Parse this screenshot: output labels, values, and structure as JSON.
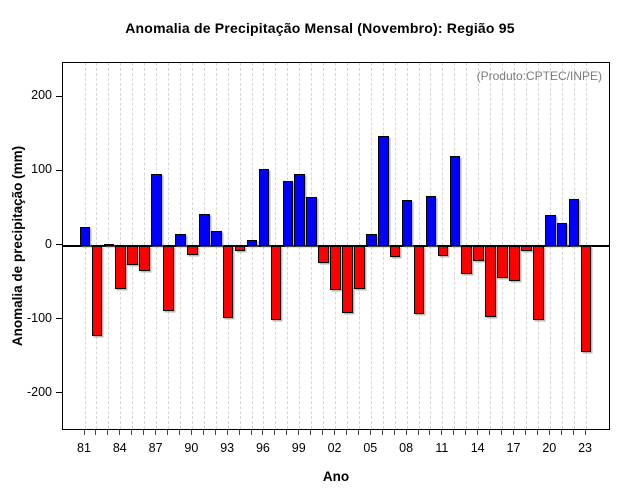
{
  "title": "Anomalia de Precipitação Mensal (Novembro): Região 95",
  "annotation": "(Produto:CPTEC/INPE)",
  "xlabel": "Ano",
  "ylabel": "Anomalia de precipitação (mm)",
  "colors": {
    "positive_bar": "#0000FF",
    "negative_bar": "#FF0000",
    "annotation_text": "#7B7B7B",
    "gridline": "#D6D6D6",
    "axis": "#000000"
  },
  "chart_data": {
    "type": "bar",
    "title": "Anomalia de Precipitação Mensal (Novembro): Região 95",
    "xlabel": "Ano",
    "ylabel": "Anomalia de precipitação (mm)",
    "annotation": "(Produto:CPTEC/INPE)",
    "legend_position": "none",
    "grid": "vertical dashed gridline per year",
    "x": [
      1981,
      1982,
      1983,
      1984,
      1985,
      1986,
      1987,
      1988,
      1989,
      1990,
      1991,
      1992,
      1993,
      1994,
      1995,
      1996,
      1997,
      1998,
      1999,
      2000,
      2001,
      2002,
      2003,
      2004,
      2005,
      2006,
      2007,
      2008,
      2009,
      2010,
      2011,
      2012,
      2013,
      2014,
      2015,
      2016,
      2017,
      2018,
      2019,
      2020,
      2021,
      2022,
      2023
    ],
    "values": [
      25,
      -122,
      2,
      -59,
      -26,
      -35,
      96,
      -88,
      15,
      -13,
      43,
      19,
      -98,
      -8,
      8,
      103,
      -101,
      87,
      96,
      65,
      -24,
      -60,
      -91,
      -58,
      15,
      148,
      -16,
      61,
      -92,
      67,
      -14,
      120,
      -39,
      -21,
      -96,
      -44,
      -48,
      -7,
      -100,
      41,
      30,
      63,
      -143
    ],
    "x_tick_labels": [
      "81",
      "84",
      "87",
      "90",
      "93",
      "96",
      "99",
      "02",
      "05",
      "08",
      "11",
      "14",
      "17",
      "20",
      "23"
    ],
    "x_tick_label_step": 3,
    "yticks": [
      -200,
      -100,
      0,
      100,
      200
    ],
    "ytick_labels": [
      "-200",
      "-100",
      "0",
      "100",
      "200"
    ],
    "ylim": [
      -250,
      246
    ],
    "bar_rule": "positive values blue, negative values red"
  }
}
